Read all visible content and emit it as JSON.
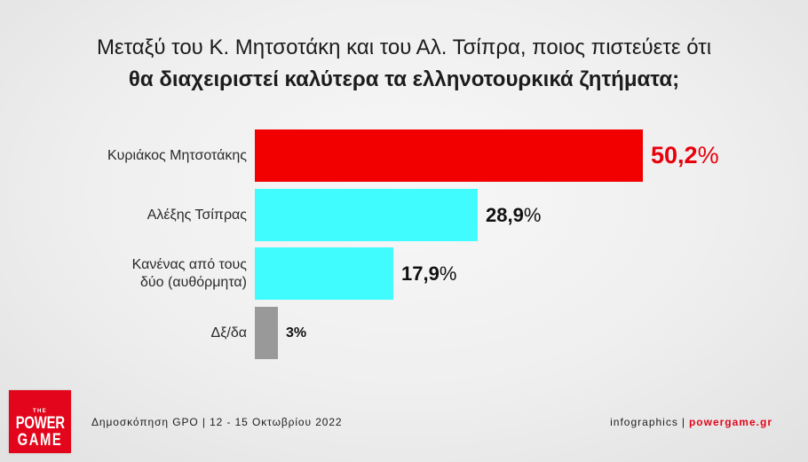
{
  "chart_data": {
    "type": "bar",
    "orientation": "horizontal",
    "title_lines": [
      "Μεταξύ του Κ. Μητσοτάκη και του Αλ. Τσίπρα, ποιος πιστεύετε ότι",
      "θα διαχειριστεί καλύτερα τα ελληνοτουρκικά ζητήματα;"
    ],
    "categories": [
      "Κυριάκος Μητσοτάκης",
      "Αλέξης Τσίπρας",
      "Κανένας από τους δύο (αυθόρμητα)",
      "Δξ/δα"
    ],
    "values": [
      50.2,
      28.9,
      17.9,
      3
    ],
    "value_labels": [
      "50,2",
      "28,9",
      "17,9",
      "3"
    ],
    "unit": "%",
    "xlabel": "",
    "ylabel": "",
    "grid": false,
    "legend": "none",
    "colors": {
      "bars": [
        "#f20000",
        "#40fcff",
        "#40fcff",
        "#999999"
      ],
      "value_labels": [
        "#e8000b",
        "#111111",
        "#111111",
        "#111111"
      ]
    }
  },
  "footer": {
    "source": "Δημοσκόπηση GPO | 12 - 15 Οκτωβρίου 2022",
    "credit_label": "infographics",
    "credit_separator": "|",
    "credit_site": "powergame.gr",
    "accent_color": "#e3051b"
  },
  "logo": {
    "line1": "THE",
    "line2": "POWER",
    "line3": "GAME",
    "color": "#e3051b"
  }
}
